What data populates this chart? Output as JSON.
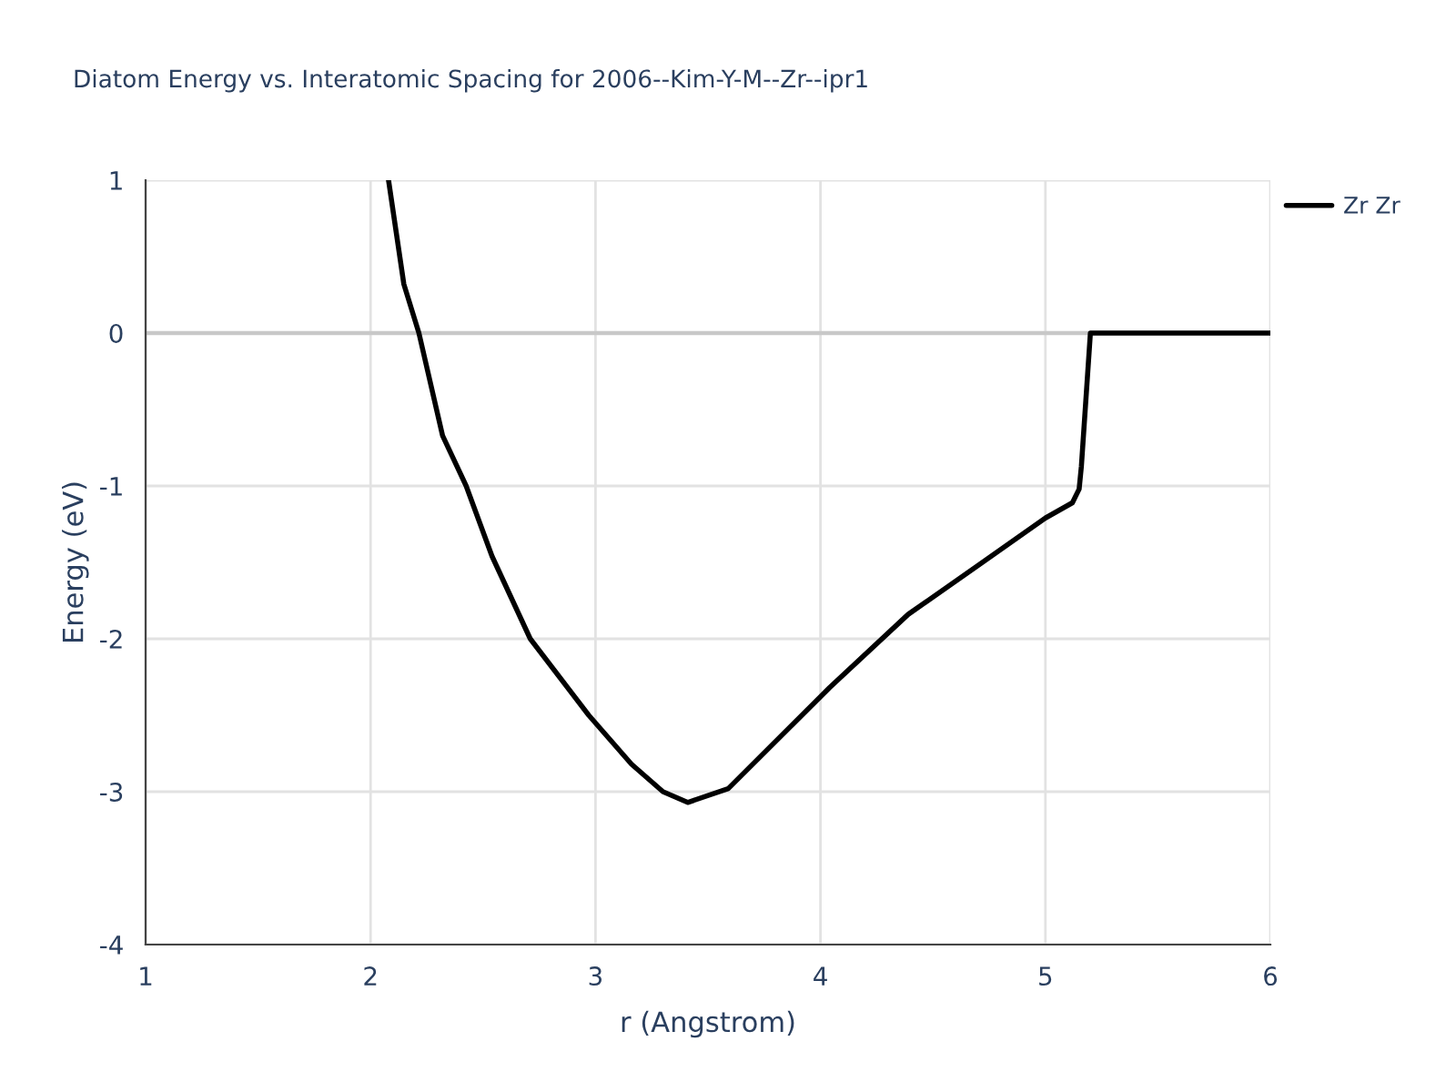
{
  "chart_data": {
    "type": "line",
    "title": "Diatom Energy vs. Interatomic Spacing for 2006--Kim-Y-M--Zr--ipr1",
    "xlabel": "r (Angstrom)",
    "ylabel": "Energy (eV)",
    "xlim": [
      1,
      6
    ],
    "ylim": [
      -4,
      1
    ],
    "xticks": [
      1,
      2,
      3,
      4,
      5,
      6
    ],
    "yticks": [
      -4,
      -3,
      -2,
      -1,
      0,
      1
    ],
    "grid": true,
    "legend": "top right",
    "marker": "none",
    "line_style": "solid",
    "series": [
      {
        "name": "Zr Zr",
        "color": "#000000",
        "x": [
          2.08,
          2.148,
          2.215,
          2.32,
          2.425,
          2.54,
          2.71,
          2.97,
          3.16,
          3.3,
          3.41,
          3.59,
          4.04,
          4.39,
          4.72,
          5.0,
          5.12,
          5.15,
          5.16,
          5.2,
          6.0
        ],
        "values": [
          1.0,
          0.32,
          0.0,
          -0.67,
          -1.0,
          -1.46,
          -2.0,
          -2.5,
          -2.82,
          -3.0,
          -3.07,
          -2.98,
          -2.32,
          -1.84,
          -1.5,
          -1.21,
          -1.11,
          -1.02,
          -0.87,
          0.0,
          0.0
        ]
      }
    ]
  }
}
